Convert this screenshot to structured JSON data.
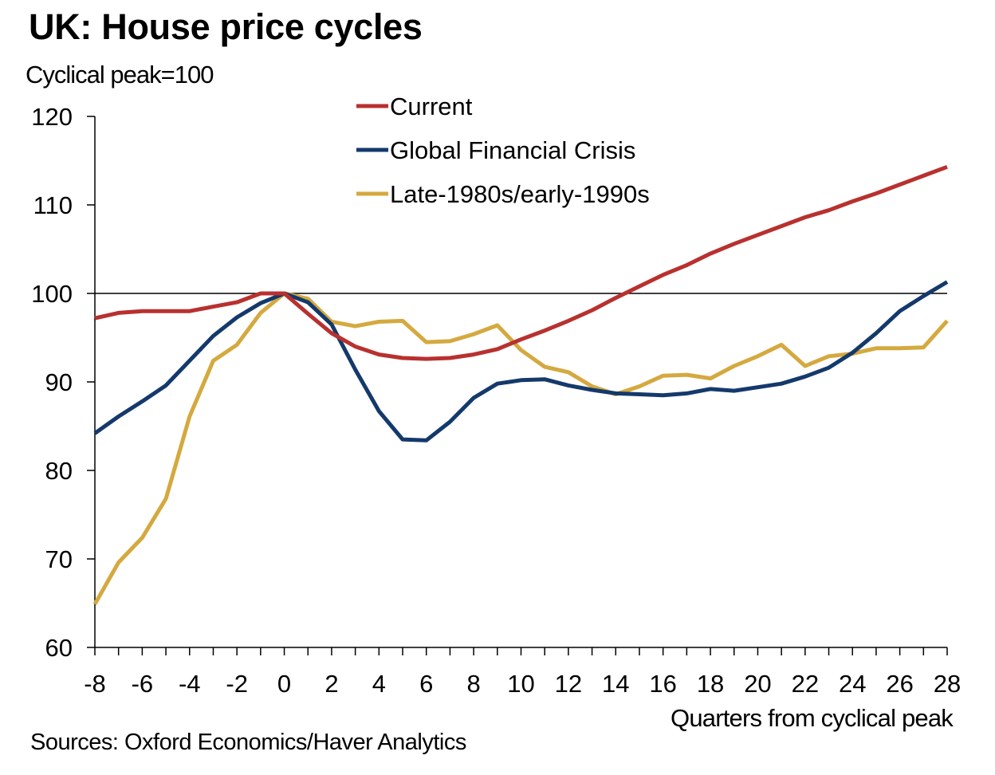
{
  "chart_data": {
    "type": "line",
    "title": "UK: House price cycles",
    "subtitle": "Cyclical peak=100",
    "xlabel": "Quarters from cyclical peak",
    "ylabel": "",
    "source": "Sources: Oxford Economics/Haver Analytics",
    "xlim": [
      -8,
      28
    ],
    "ylim": [
      60,
      120
    ],
    "x_ticks": [
      -8,
      -6,
      -4,
      -2,
      0,
      2,
      4,
      6,
      8,
      10,
      12,
      14,
      16,
      18,
      20,
      22,
      24,
      26,
      28
    ],
    "y_ticks": [
      60,
      70,
      80,
      90,
      100,
      110,
      120
    ],
    "reference_line": 100,
    "grid": false,
    "legend_position": "top-center",
    "x": [
      -8,
      -7,
      -6,
      -5,
      -4,
      -3,
      -2,
      -1,
      0,
      1,
      2,
      3,
      4,
      5,
      6,
      7,
      8,
      9,
      10,
      11,
      12,
      13,
      14,
      15,
      16,
      17,
      18,
      19,
      20,
      21,
      22,
      23,
      24,
      25,
      26,
      27,
      28
    ],
    "series": [
      {
        "name": "Current",
        "color": "#b8312f",
        "values": [
          97.2,
          97.8,
          98.0,
          98.0,
          98.0,
          98.5,
          99.0,
          100.0,
          100.0,
          97.7,
          95.5,
          94.0,
          93.1,
          92.7,
          92.6,
          92.7,
          93.1,
          93.7,
          94.8,
          95.8,
          96.9,
          98.1,
          99.5,
          100.8,
          102.1,
          103.2,
          104.5,
          105.6,
          106.6,
          107.6,
          108.6,
          109.4,
          110.4,
          111.3,
          112.3,
          113.3,
          114.3
        ]
      },
      {
        "name": "Global Financial Crisis",
        "color": "#14396b",
        "values": [
          84.2,
          86.1,
          87.8,
          89.6,
          92.4,
          95.2,
          97.3,
          98.9,
          100.0,
          99.0,
          96.5,
          91.4,
          86.7,
          83.5,
          83.4,
          85.5,
          88.2,
          89.8,
          90.2,
          90.3,
          89.6,
          89.1,
          88.7,
          88.6,
          88.5,
          88.7,
          89.2,
          89.0,
          89.4,
          89.8,
          90.6,
          91.6,
          93.3,
          95.5,
          98.0,
          99.7,
          101.3
        ]
      },
      {
        "name": "Late-1980s/early-1990s",
        "color": "#d4a93f",
        "values": [
          64.9,
          69.6,
          72.4,
          76.8,
          86.1,
          92.4,
          94.2,
          97.8,
          100.0,
          99.4,
          96.8,
          96.3,
          96.8,
          96.9,
          94.5,
          94.6,
          95.4,
          96.4,
          93.6,
          91.7,
          91.1,
          89.5,
          88.6,
          89.5,
          90.7,
          90.8,
          90.4,
          91.8,
          92.9,
          94.2,
          91.8,
          92.9,
          93.2,
          93.8,
          93.8,
          93.9,
          96.9
        ]
      }
    ]
  }
}
